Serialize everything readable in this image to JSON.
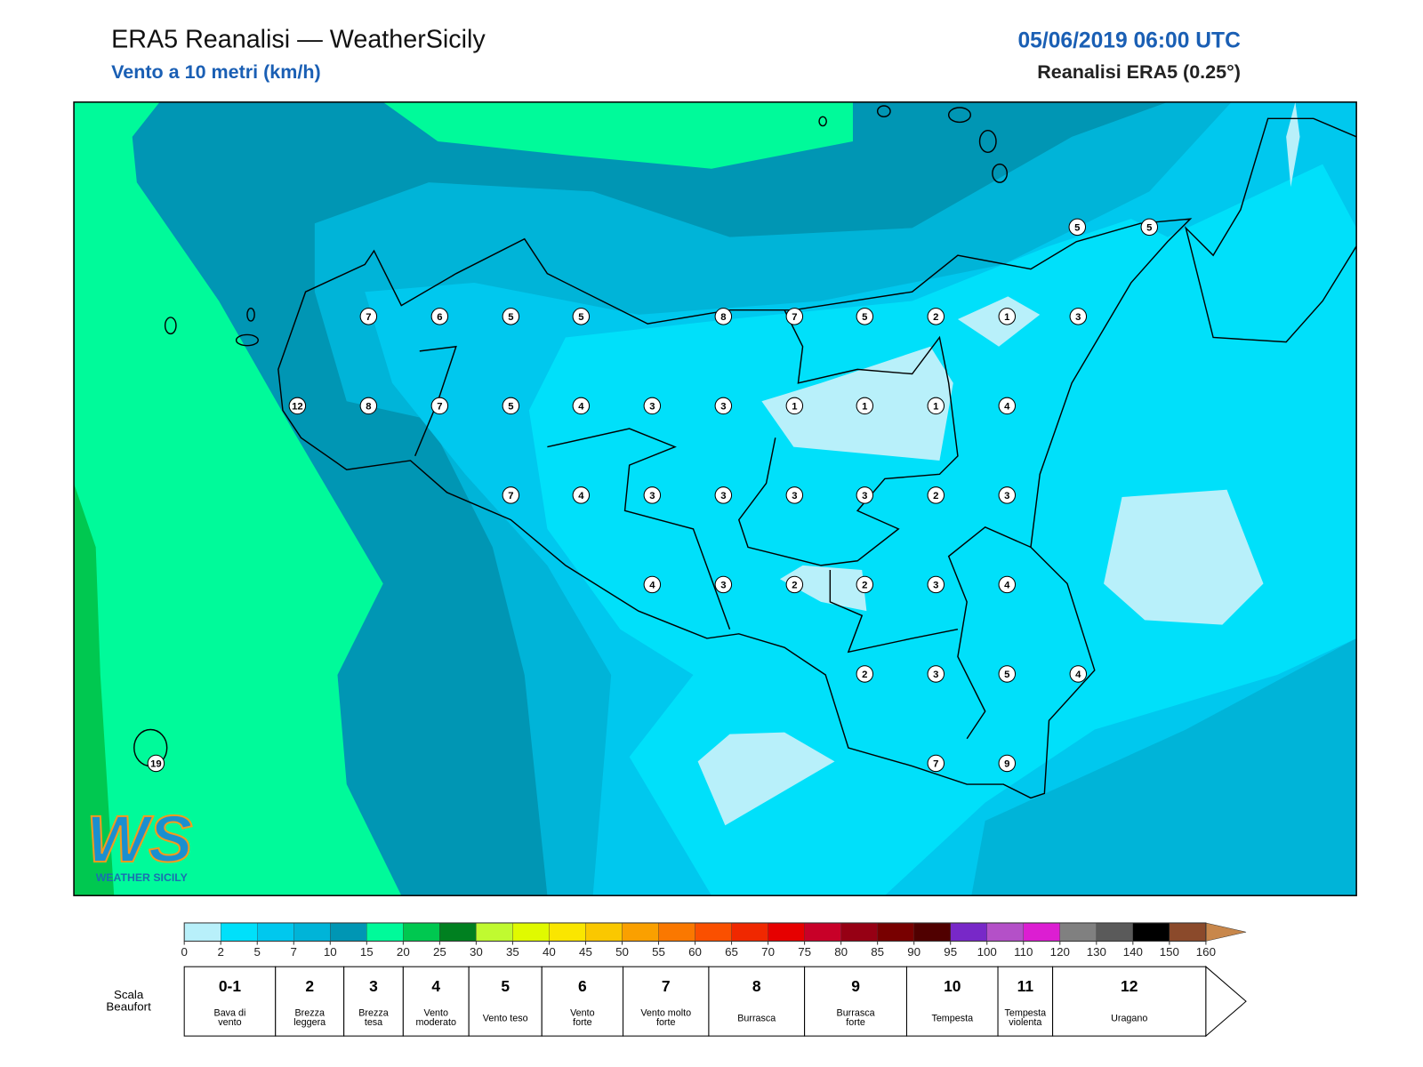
{
  "header": {
    "title": "ERA5 Reanalisi — WeatherSicily",
    "subtitle": "Vento a 10 metri (km/h)",
    "datetime": "05/06/2019 06:00 UTC",
    "source": "Reanalisi ERA5 (0.25°)"
  },
  "stations": [
    7,
    6,
    5,
    5,
    8,
    7,
    5,
    2,
    1,
    3,
    5,
    5,
    12,
    8,
    7,
    5,
    4,
    3,
    3,
    1,
    1,
    1,
    4,
    7,
    4,
    3,
    3,
    3,
    3,
    2,
    3,
    4,
    3,
    2,
    2,
    3,
    4,
    2,
    3,
    5,
    4,
    7,
    9,
    19
  ],
  "colorbar": {
    "ticks": [
      0,
      2,
      5,
      7,
      10,
      15,
      20,
      25,
      30,
      35,
      40,
      45,
      50,
      55,
      60,
      65,
      70,
      75,
      80,
      85,
      90,
      95,
      100,
      110,
      120,
      130,
      140,
      150,
      160
    ],
    "colors": [
      "#b8f0fa",
      "#00e0fa",
      "#00c8ee",
      "#00b4d8",
      "#0096b4",
      "#00fa9a",
      "#00c850",
      "#008020",
      "#c0fa30",
      "#e0fa00",
      "#fae600",
      "#fac800",
      "#faa000",
      "#fa7800",
      "#fa5000",
      "#f02800",
      "#e60000",
      "#c80028",
      "#960014",
      "#780000",
      "#500000",
      "#7828c8",
      "#b450c8",
      "#dc1ed2",
      "#808080",
      "#5a5a5a",
      "#000000",
      "#8b4a2b",
      "#c8874b"
    ]
  },
  "beaufort": {
    "title": [
      "Scala",
      "Beaufort"
    ],
    "cells": [
      {
        "force": "0-1",
        "label": [
          "Bava di",
          "vento"
        ]
      },
      {
        "force": "2",
        "label": [
          "Brezza",
          "leggera"
        ]
      },
      {
        "force": "3",
        "label": [
          "Brezza",
          "tesa"
        ]
      },
      {
        "force": "4",
        "label": [
          "Vento",
          "moderato"
        ]
      },
      {
        "force": "5",
        "label": [
          "Vento teso"
        ]
      },
      {
        "force": "6",
        "label": [
          "Vento",
          "forte"
        ]
      },
      {
        "force": "7",
        "label": [
          "Vento molto",
          "forte"
        ]
      },
      {
        "force": "8",
        "label": [
          "Burrasca"
        ]
      },
      {
        "force": "9",
        "label": [
          "Burrasca",
          "forte"
        ]
      },
      {
        "force": "10",
        "label": [
          "Tempesta"
        ]
      },
      {
        "force": "11",
        "label": [
          "Tempesta",
          "violenta"
        ]
      },
      {
        "force": "12",
        "label": [
          "Uragano"
        ]
      }
    ]
  },
  "logo": {
    "main": "WS",
    "sub": "WEATHER SICILY"
  }
}
